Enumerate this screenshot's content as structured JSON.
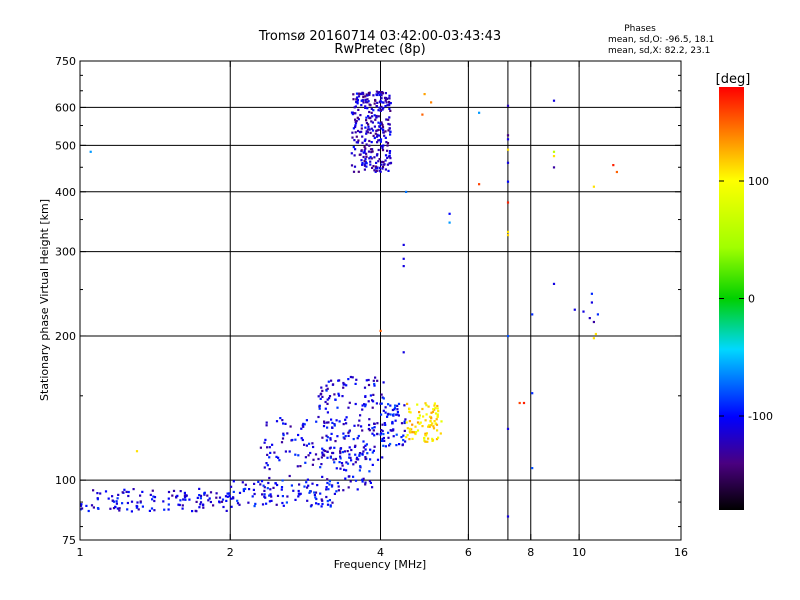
{
  "chart_data": {
    "type": "scatter",
    "title": "Tromsø 20160714 03:42:00-03:43:43",
    "subtitle": "RwPretec (8p)",
    "xlabel": "Frequency [MHz]",
    "ylabel": "Stationary phase Virtual Height [km]",
    "x_scale": "log",
    "y_scale": "log",
    "xlim": [
      1,
      16
    ],
    "ylim": [
      75,
      750
    ],
    "x_ticks": [
      1,
      2,
      4,
      6,
      8,
      10,
      16
    ],
    "y_ticks": [
      75,
      100,
      200,
      300,
      400,
      500,
      600,
      750
    ],
    "x_gridlines": [
      2,
      4,
      6,
      7.2,
      8,
      10
    ],
    "y_gridlines": [
      100,
      200,
      300,
      400,
      500,
      600
    ],
    "phases_box": {
      "heading": "Phases",
      "line_o": "mean, sd,O: -96.5, 18.1",
      "line_x": "mean, sd,X:  82.2, 23.1"
    },
    "colorbar": {
      "label": "[deg]",
      "range": [
        -180,
        180
      ],
      "ticks": [
        100,
        0,
        -100
      ]
    },
    "clusters": [
      {
        "f_min": 1.0,
        "f_max": 2.0,
        "h_min": 86,
        "h_max": 96,
        "phase": -110,
        "count": 130
      },
      {
        "f_min": 2.0,
        "f_max": 3.3,
        "h_min": 88,
        "h_max": 100,
        "phase": -105,
        "count": 110
      },
      {
        "f_min": 3.3,
        "f_max": 3.9,
        "h_min": 95,
        "h_max": 120,
        "phase": -105,
        "count": 50
      },
      {
        "f_min": 2.3,
        "f_max": 3.3,
        "h_min": 100,
        "h_max": 135,
        "phase": -110,
        "count": 90
      },
      {
        "f_min": 3.0,
        "f_max": 4.1,
        "h_min": 110,
        "h_max": 165,
        "phase": -110,
        "count": 170
      },
      {
        "f_min": 4.0,
        "f_max": 4.5,
        "h_min": 118,
        "h_max": 145,
        "phase": -100,
        "count": 60
      },
      {
        "f_min": 4.5,
        "f_max": 5.3,
        "h_min": 120,
        "h_max": 145,
        "phase": 110,
        "count": 90
      },
      {
        "f_min": 3.5,
        "f_max": 4.2,
        "h_min": 440,
        "h_max": 650,
        "phase": -120,
        "count": 300
      }
    ],
    "points": [
      {
        "x": 1.05,
        "y": 485,
        "phase": -60
      },
      {
        "x": 1.3,
        "y": 115,
        "phase": 110
      },
      {
        "x": 4.0,
        "y": 205,
        "phase": 150
      },
      {
        "x": 4.45,
        "y": 310,
        "phase": -110
      },
      {
        "x": 4.45,
        "y": 290,
        "phase": -110
      },
      {
        "x": 4.45,
        "y": 280,
        "phase": -110
      },
      {
        "x": 4.45,
        "y": 185,
        "phase": -110
      },
      {
        "x": 4.5,
        "y": 400,
        "phase": -70
      },
      {
        "x": 4.9,
        "y": 640,
        "phase": 130
      },
      {
        "x": 4.85,
        "y": 580,
        "phase": 150
      },
      {
        "x": 5.05,
        "y": 615,
        "phase": 140
      },
      {
        "x": 5.5,
        "y": 360,
        "phase": -100
      },
      {
        "x": 5.5,
        "y": 345,
        "phase": -60
      },
      {
        "x": 6.3,
        "y": 585,
        "phase": -60
      },
      {
        "x": 6.3,
        "y": 415,
        "phase": 160
      },
      {
        "x": 7.2,
        "y": 605,
        "phase": -120
      },
      {
        "x": 7.2,
        "y": 525,
        "phase": -140
      },
      {
        "x": 7.2,
        "y": 515,
        "phase": -110
      },
      {
        "x": 7.2,
        "y": 490,
        "phase": 110
      },
      {
        "x": 7.2,
        "y": 460,
        "phase": -110
      },
      {
        "x": 7.2,
        "y": 420,
        "phase": -100
      },
      {
        "x": 7.2,
        "y": 380,
        "phase": 170
      },
      {
        "x": 7.2,
        "y": 330,
        "phase": 110
      },
      {
        "x": 7.2,
        "y": 325,
        "phase": 115
      },
      {
        "x": 7.2,
        "y": 200,
        "phase": -80
      },
      {
        "x": 7.2,
        "y": 128,
        "phase": -110
      },
      {
        "x": 7.2,
        "y": 84,
        "phase": -110
      },
      {
        "x": 7.6,
        "y": 145,
        "phase": 160
      },
      {
        "x": 7.75,
        "y": 145,
        "phase": 170
      },
      {
        "x": 8.05,
        "y": 222,
        "phase": -90
      },
      {
        "x": 8.05,
        "y": 152,
        "phase": -90
      },
      {
        "x": 8.05,
        "y": 106,
        "phase": -80
      },
      {
        "x": 8.9,
        "y": 620,
        "phase": -110
      },
      {
        "x": 8.9,
        "y": 485,
        "phase": 60
      },
      {
        "x": 8.9,
        "y": 475,
        "phase": 110
      },
      {
        "x": 8.9,
        "y": 450,
        "phase": -130
      },
      {
        "x": 8.9,
        "y": 257,
        "phase": -110
      },
      {
        "x": 9.8,
        "y": 227,
        "phase": -110
      },
      {
        "x": 10.2,
        "y": 225,
        "phase": -110
      },
      {
        "x": 10.6,
        "y": 245,
        "phase": -90
      },
      {
        "x": 10.6,
        "y": 235,
        "phase": -110
      },
      {
        "x": 10.5,
        "y": 218,
        "phase": -120
      },
      {
        "x": 10.7,
        "y": 214,
        "phase": -130
      },
      {
        "x": 10.9,
        "y": 222,
        "phase": -90
      },
      {
        "x": 10.7,
        "y": 198,
        "phase": 110
      },
      {
        "x": 10.8,
        "y": 202,
        "phase": 110
      },
      {
        "x": 10.7,
        "y": 410,
        "phase": 110
      },
      {
        "x": 11.7,
        "y": 455,
        "phase": 170
      },
      {
        "x": 11.9,
        "y": 440,
        "phase": 150
      }
    ]
  }
}
